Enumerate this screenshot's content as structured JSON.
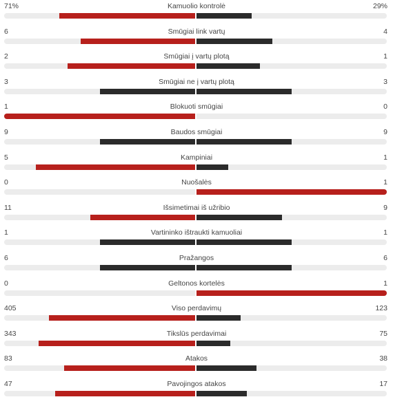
{
  "colors": {
    "leader": "#b7201c",
    "trailer": "#2b2b2b",
    "equal": "#2b2b2b",
    "track": "#ececec"
  },
  "stats": [
    {
      "label": "Kamuolio kontrolė",
      "home": "71%",
      "away": "29%",
      "home_share": 0.71,
      "away_share": 0.29
    },
    {
      "label": "Smūgiai link vartų",
      "home": "6",
      "away": "4",
      "home_share": 0.6,
      "away_share": 0.4
    },
    {
      "label": "Smūgiai į vartų plotą",
      "home": "2",
      "away": "1",
      "home_share": 0.667,
      "away_share": 0.333
    },
    {
      "label": "Smūgiai ne į vartų plotą",
      "home": "3",
      "away": "3",
      "home_share": 0.5,
      "away_share": 0.5
    },
    {
      "label": "Blokuoti smūgiai",
      "home": "1",
      "away": "0",
      "home_share": 1.0,
      "away_share": 0.0
    },
    {
      "label": "Baudos smūgiai",
      "home": "9",
      "away": "9",
      "home_share": 0.5,
      "away_share": 0.5
    },
    {
      "label": "Kampiniai",
      "home": "5",
      "away": "1",
      "home_share": 0.833,
      "away_share": 0.167
    },
    {
      "label": "Nuošalės",
      "home": "0",
      "away": "1",
      "home_share": 0.0,
      "away_share": 1.0
    },
    {
      "label": "Išsimetimai iš užribio",
      "home": "11",
      "away": "9",
      "home_share": 0.55,
      "away_share": 0.45
    },
    {
      "label": "Vartininko ištraukti kamuoliai",
      "home": "1",
      "away": "1",
      "home_share": 0.5,
      "away_share": 0.5
    },
    {
      "label": "Pražangos",
      "home": "6",
      "away": "6",
      "home_share": 0.5,
      "away_share": 0.5
    },
    {
      "label": "Geltonos kortelės",
      "home": "0",
      "away": "1",
      "home_share": 0.0,
      "away_share": 1.0
    },
    {
      "label": "Viso perdavimų",
      "home": "405",
      "away": "123",
      "home_share": 0.767,
      "away_share": 0.233
    },
    {
      "label": "Tikslūs perdavimai",
      "home": "343",
      "away": "75",
      "home_share": 0.821,
      "away_share": 0.179
    },
    {
      "label": "Atakos",
      "home": "83",
      "away": "38",
      "home_share": 0.686,
      "away_share": 0.314
    },
    {
      "label": "Pavojingos atakos",
      "home": "47",
      "away": "17",
      "home_share": 0.734,
      "away_share": 0.266
    }
  ]
}
